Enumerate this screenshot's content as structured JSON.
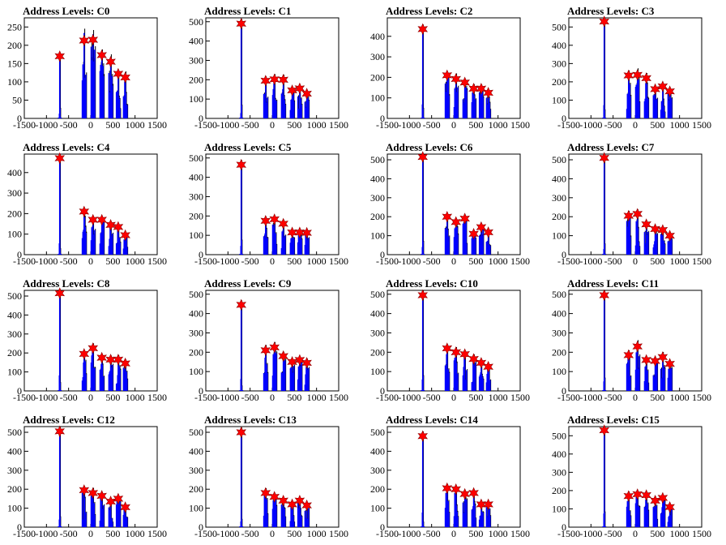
{
  "chart_data": [
    {
      "title": "Address Levels: C0",
      "type": "bar",
      "xlim": [
        -1500,
        1500
      ],
      "ylim": [
        0,
        275
      ],
      "yticks": [
        0,
        50,
        100,
        150,
        200,
        250
      ],
      "xticks": [
        -1500,
        -1000,
        -500,
        0,
        500,
        1000,
        1500
      ],
      "peaks": [
        {
          "x": -700,
          "y": 170
        },
        {
          "x": -150,
          "y": 213
        },
        {
          "x": 50,
          "y": 215
        },
        {
          "x": 250,
          "y": 173
        },
        {
          "x": 450,
          "y": 155
        },
        {
          "x": 620,
          "y": 122
        },
        {
          "x": 780,
          "y": 112
        }
      ]
    },
    {
      "title": "Address Levels: C1",
      "type": "bar",
      "xlim": [
        -1500,
        1500
      ],
      "ylim": [
        0,
        520
      ],
      "yticks": [
        0,
        100,
        200,
        300,
        400,
        500
      ],
      "xticks": [
        -1500,
        -1000,
        -500,
        0,
        500,
        1000,
        1500
      ],
      "peaks": [
        {
          "x": -700,
          "y": 490
        },
        {
          "x": -150,
          "y": 195
        },
        {
          "x": 50,
          "y": 202
        },
        {
          "x": 250,
          "y": 200
        },
        {
          "x": 450,
          "y": 145
        },
        {
          "x": 620,
          "y": 155
        },
        {
          "x": 780,
          "y": 128
        }
      ]
    },
    {
      "title": "Address Levels: C2",
      "type": "bar",
      "xlim": [
        -1500,
        1500
      ],
      "ylim": [
        0,
        490
      ],
      "yticks": [
        0,
        100,
        200,
        300,
        400
      ],
      "xticks": [
        -1500,
        -1000,
        -500,
        0,
        500,
        1000,
        1500
      ],
      "peaks": [
        {
          "x": -700,
          "y": 435
        },
        {
          "x": -150,
          "y": 210
        },
        {
          "x": 50,
          "y": 192
        },
        {
          "x": 250,
          "y": 175
        },
        {
          "x": 450,
          "y": 145
        },
        {
          "x": 620,
          "y": 145
        },
        {
          "x": 780,
          "y": 125
        }
      ]
    },
    {
      "title": "Address Levels: C3",
      "type": "bar",
      "xlim": [
        -1500,
        1500
      ],
      "ylim": [
        0,
        550
      ],
      "yticks": [
        0,
        100,
        200,
        300,
        400,
        500
      ],
      "xticks": [
        -1500,
        -1000,
        -500,
        0,
        500,
        1000,
        1500
      ],
      "peaks": [
        {
          "x": -700,
          "y": 530
        },
        {
          "x": -150,
          "y": 235
        },
        {
          "x": 50,
          "y": 238
        },
        {
          "x": 250,
          "y": 220
        },
        {
          "x": 450,
          "y": 160
        },
        {
          "x": 620,
          "y": 175
        },
        {
          "x": 780,
          "y": 148
        }
      ]
    },
    {
      "title": "Address Levels: C4",
      "type": "bar",
      "xlim": [
        -1500,
        1500
      ],
      "ylim": [
        0,
        490
      ],
      "yticks": [
        0,
        100,
        200,
        300,
        400
      ],
      "xticks": [
        -1500,
        -1000,
        -500,
        0,
        500,
        1000,
        1500
      ],
      "peaks": [
        {
          "x": -700,
          "y": 470
        },
        {
          "x": -150,
          "y": 210
        },
        {
          "x": 50,
          "y": 170
        },
        {
          "x": 250,
          "y": 170
        },
        {
          "x": 450,
          "y": 145
        },
        {
          "x": 620,
          "y": 135
        },
        {
          "x": 780,
          "y": 95
        }
      ]
    },
    {
      "title": "Address Levels: C5",
      "type": "bar",
      "xlim": [
        -1500,
        1500
      ],
      "ylim": [
        0,
        520
      ],
      "yticks": [
        0,
        100,
        200,
        300,
        400,
        500
      ],
      "xticks": [
        -1500,
        -1000,
        -500,
        0,
        500,
        1000,
        1500
      ],
      "peaks": [
        {
          "x": -700,
          "y": 465
        },
        {
          "x": -150,
          "y": 175
        },
        {
          "x": 50,
          "y": 183
        },
        {
          "x": 250,
          "y": 160
        },
        {
          "x": 450,
          "y": 115
        },
        {
          "x": 620,
          "y": 115
        },
        {
          "x": 780,
          "y": 113
        }
      ]
    },
    {
      "title": "Address Levels: C6",
      "type": "bar",
      "xlim": [
        -1500,
        1500
      ],
      "ylim": [
        0,
        530
      ],
      "yticks": [
        0,
        100,
        200,
        300,
        400,
        500
      ],
      "xticks": [
        -1500,
        -1000,
        -500,
        0,
        500,
        1000,
        1500
      ],
      "peaks": [
        {
          "x": -700,
          "y": 515
        },
        {
          "x": -150,
          "y": 200
        },
        {
          "x": 50,
          "y": 172
        },
        {
          "x": 250,
          "y": 190
        },
        {
          "x": 450,
          "y": 110
        },
        {
          "x": 620,
          "y": 145
        },
        {
          "x": 780,
          "y": 118
        }
      ]
    },
    {
      "title": "Address Levels: C7",
      "type": "bar",
      "xlim": [
        -1500,
        1500
      ],
      "ylim": [
        0,
        530
      ],
      "yticks": [
        0,
        100,
        200,
        300,
        400,
        500
      ],
      "xticks": [
        -1500,
        -1000,
        -500,
        0,
        500,
        1000,
        1500
      ],
      "peaks": [
        {
          "x": -700,
          "y": 510
        },
        {
          "x": -150,
          "y": 205
        },
        {
          "x": 50,
          "y": 215
        },
        {
          "x": 250,
          "y": 160
        },
        {
          "x": 450,
          "y": 135
        },
        {
          "x": 620,
          "y": 130
        },
        {
          "x": 780,
          "y": 100
        }
      ]
    },
    {
      "title": "Address Levels: C8",
      "type": "bar",
      "xlim": [
        -1500,
        1500
      ],
      "ylim": [
        0,
        530
      ],
      "yticks": [
        0,
        100,
        200,
        300,
        400,
        500
      ],
      "xticks": [
        -1500,
        -1000,
        -500,
        0,
        500,
        1000,
        1500
      ],
      "peaks": [
        {
          "x": -700,
          "y": 515
        },
        {
          "x": -150,
          "y": 195
        },
        {
          "x": 50,
          "y": 225
        },
        {
          "x": 250,
          "y": 175
        },
        {
          "x": 450,
          "y": 165
        },
        {
          "x": 620,
          "y": 165
        },
        {
          "x": 780,
          "y": 145
        }
      ]
    },
    {
      "title": "Address Levels: C9",
      "type": "bar",
      "xlim": [
        -1500,
        1500
      ],
      "ylim": [
        0,
        520
      ],
      "yticks": [
        0,
        100,
        200,
        300,
        400,
        500
      ],
      "xticks": [
        -1500,
        -1000,
        -500,
        0,
        500,
        1000,
        1500
      ],
      "peaks": [
        {
          "x": -700,
          "y": 445
        },
        {
          "x": -150,
          "y": 210
        },
        {
          "x": 50,
          "y": 225
        },
        {
          "x": 250,
          "y": 180
        },
        {
          "x": 450,
          "y": 150
        },
        {
          "x": 620,
          "y": 160
        },
        {
          "x": 780,
          "y": 145
        }
      ]
    },
    {
      "title": "Address Levels: C10",
      "type": "bar",
      "xlim": [
        -1500,
        1500
      ],
      "ylim": [
        0,
        520
      ],
      "yticks": [
        0,
        100,
        200,
        300,
        400,
        500
      ],
      "xticks": [
        -1500,
        -1000,
        -500,
        0,
        500,
        1000,
        1500
      ],
      "peaks": [
        {
          "x": -700,
          "y": 495
        },
        {
          "x": -150,
          "y": 220
        },
        {
          "x": 50,
          "y": 200
        },
        {
          "x": 250,
          "y": 190
        },
        {
          "x": 450,
          "y": 165
        },
        {
          "x": 620,
          "y": 145
        },
        {
          "x": 780,
          "y": 125
        }
      ]
    },
    {
      "title": "Address Levels: C11",
      "type": "bar",
      "xlim": [
        -1500,
        1500
      ],
      "ylim": [
        0,
        520
      ],
      "yticks": [
        0,
        100,
        200,
        300,
        400,
        500
      ],
      "xticks": [
        -1500,
        -1000,
        -500,
        0,
        500,
        1000,
        1500
      ],
      "peaks": [
        {
          "x": -700,
          "y": 495
        },
        {
          "x": -150,
          "y": 185
        },
        {
          "x": 50,
          "y": 230
        },
        {
          "x": 250,
          "y": 160
        },
        {
          "x": 450,
          "y": 155
        },
        {
          "x": 620,
          "y": 175
        },
        {
          "x": 780,
          "y": 140
        }
      ]
    },
    {
      "title": "Address Levels: C12",
      "type": "bar",
      "xlim": [
        -1500,
        1500
      ],
      "ylim": [
        0,
        530
      ],
      "yticks": [
        0,
        100,
        200,
        300,
        400,
        500
      ],
      "xticks": [
        -1500,
        -1000,
        -500,
        0,
        500,
        1000,
        1500
      ],
      "peaks": [
        {
          "x": -700,
          "y": 505
        },
        {
          "x": -150,
          "y": 195
        },
        {
          "x": 50,
          "y": 180
        },
        {
          "x": 250,
          "y": 165
        },
        {
          "x": 450,
          "y": 135
        },
        {
          "x": 620,
          "y": 150
        },
        {
          "x": 780,
          "y": 105
        }
      ]
    },
    {
      "title": "Address Levels: C13",
      "type": "bar",
      "xlim": [
        -1500,
        1500
      ],
      "ylim": [
        0,
        530
      ],
      "yticks": [
        0,
        100,
        200,
        300,
        400,
        500
      ],
      "xticks": [
        -1500,
        -1000,
        -500,
        0,
        500,
        1000,
        1500
      ],
      "peaks": [
        {
          "x": -700,
          "y": 500
        },
        {
          "x": -150,
          "y": 180
        },
        {
          "x": 50,
          "y": 160
        },
        {
          "x": 250,
          "y": 140
        },
        {
          "x": 450,
          "y": 120
        },
        {
          "x": 620,
          "y": 140
        },
        {
          "x": 780,
          "y": 115
        }
      ]
    },
    {
      "title": "Address Levels: C14",
      "type": "bar",
      "xlim": [
        -1500,
        1500
      ],
      "ylim": [
        0,
        530
      ],
      "yticks": [
        0,
        100,
        200,
        300,
        400,
        500
      ],
      "xticks": [
        -1500,
        -1000,
        -500,
        0,
        500,
        1000,
        1500
      ],
      "peaks": [
        {
          "x": -700,
          "y": 480
        },
        {
          "x": -150,
          "y": 205
        },
        {
          "x": 50,
          "y": 200
        },
        {
          "x": 250,
          "y": 175
        },
        {
          "x": 450,
          "y": 180
        },
        {
          "x": 620,
          "y": 120
        },
        {
          "x": 780,
          "y": 120
        }
      ]
    },
    {
      "title": "Address Levels: C15",
      "type": "bar",
      "xlim": [
        -1500,
        1500
      ],
      "ylim": [
        0,
        550
      ],
      "yticks": [
        0,
        100,
        200,
        300,
        400,
        500
      ],
      "xticks": [
        -1500,
        -1000,
        -500,
        0,
        500,
        1000,
        1500
      ],
      "peaks": [
        {
          "x": -700,
          "y": 530
        },
        {
          "x": -150,
          "y": 170
        },
        {
          "x": 50,
          "y": 180
        },
        {
          "x": 250,
          "y": 175
        },
        {
          "x": 450,
          "y": 145
        },
        {
          "x": 620,
          "y": 160
        },
        {
          "x": 780,
          "y": 110
        }
      ]
    }
  ],
  "colors": {
    "histogram": "#0000ff",
    "outline": "#000000",
    "marker": "#ff0000",
    "marker_edge": "#8b0000"
  }
}
